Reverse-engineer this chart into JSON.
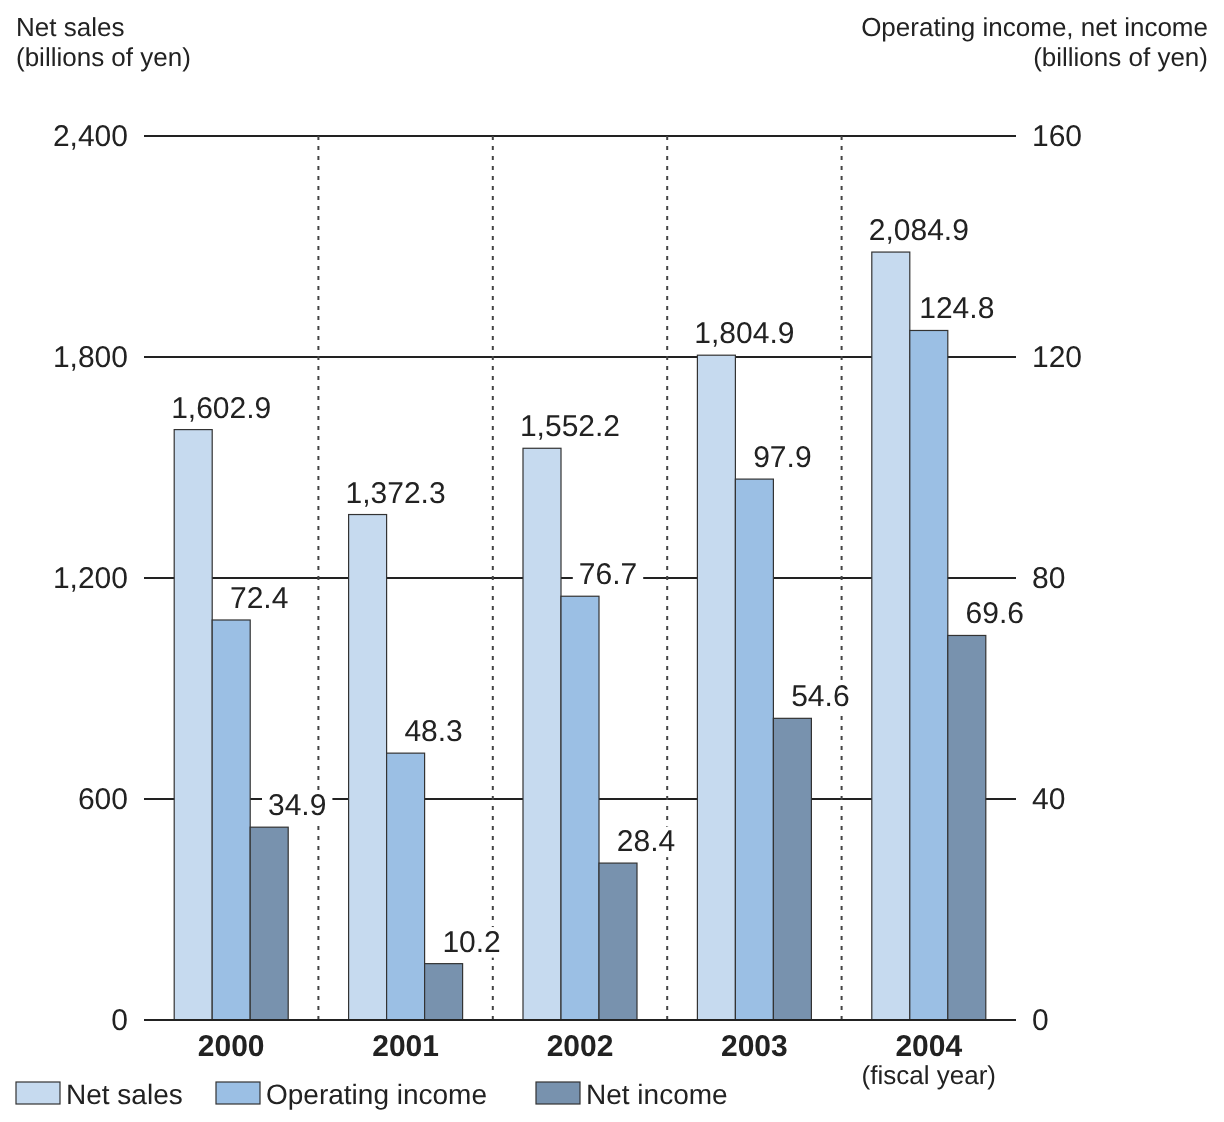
{
  "chart_data": {
    "type": "bar",
    "categories": [
      "2000",
      "2001",
      "2002",
      "2003",
      "2004"
    ],
    "xlabel": "(fiscal year)",
    "ylabel": "Net sales\n(billions of yen)",
    "y2label": "Operating income, net income\n(billions of yen)",
    "series": [
      {
        "name": "Net sales",
        "color": "#c6daef",
        "values": [
          1602.9,
          1372.3,
          1552.2,
          1804.9,
          2084.9
        ],
        "value_labels": [
          "1,602.9",
          "1,372.3",
          "1,552.2",
          "1,804.9",
          "2,084.9"
        ]
      },
      {
        "name": "Operating income",
        "color": "#9bbfe4",
        "axis": "y2",
        "values": [
          72.4,
          48.3,
          76.7,
          97.9,
          124.8
        ],
        "value_labels": [
          "72.4",
          "48.3",
          "76.7",
          "97.9",
          "124.8"
        ]
      },
      {
        "name": "Net income",
        "color": "#7892ae",
        "axis": "y2",
        "values": [
          34.9,
          10.2,
          28.4,
          54.6,
          69.6
        ],
        "value_labels": [
          "34.9",
          "10.2",
          "28.4",
          "54.6",
          "69.6"
        ]
      }
    ],
    "ylim": [
      0,
      2400
    ],
    "yticks": [
      {
        "value": 0,
        "label": "0"
      },
      {
        "value": 600,
        "label": "600"
      },
      {
        "value": 1200,
        "label": "1,200"
      },
      {
        "value": 1800,
        "label": "1,800"
      },
      {
        "value": 2400,
        "label": "2,400"
      }
    ],
    "y2lim": [
      0,
      160
    ],
    "y2ticks": [
      0,
      40,
      80,
      120,
      160
    ],
    "grid": "y",
    "legend": "bottom"
  }
}
